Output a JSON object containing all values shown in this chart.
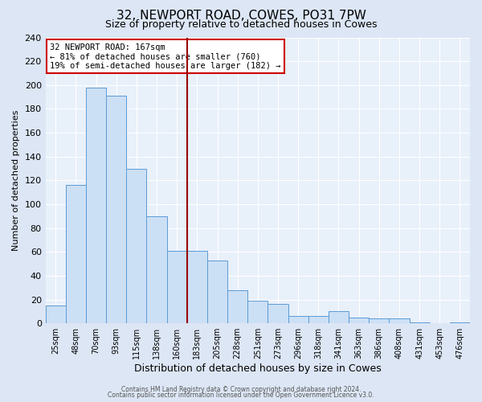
{
  "title": "32, NEWPORT ROAD, COWES, PO31 7PW",
  "subtitle": "Size of property relative to detached houses in Cowes",
  "xlabel": "Distribution of detached houses by size in Cowes",
  "ylabel": "Number of detached properties",
  "footer_line1": "Contains HM Land Registry data © Crown copyright and database right 2024.",
  "footer_line2": "Contains public sector information licensed under the Open Government Licence v3.0.",
  "bar_heights": [
    15,
    116,
    198,
    191,
    130,
    90,
    61,
    61,
    53,
    28,
    19,
    16,
    6,
    6,
    10,
    5,
    4,
    4,
    1,
    0,
    1
  ],
  "tick_labels": [
    "25sqm",
    "48sqm",
    "70sqm",
    "93sqm",
    "115sqm",
    "138sqm",
    "160sqm",
    "183sqm",
    "205sqm",
    "228sqm",
    "251sqm",
    "273sqm",
    "296sqm",
    "318sqm",
    "341sqm",
    "363sqm",
    "386sqm",
    "408sqm",
    "431sqm",
    "453sqm",
    "476sqm"
  ],
  "ylim": [
    0,
    240
  ],
  "yticks": [
    0,
    20,
    40,
    60,
    80,
    100,
    120,
    140,
    160,
    180,
    200,
    220,
    240
  ],
  "bar_color": "#cce0f5",
  "bar_edge_color": "#5b9bd5",
  "vline_index": 6,
  "vline_color": "#990000",
  "annotation_title": "32 NEWPORT ROAD: 167sqm",
  "annotation_line1": "← 81% of detached houses are smaller (760)",
  "annotation_line2": "19% of semi-detached houses are larger (182) →",
  "annotation_box_edgecolor": "#cc0000",
  "bg_color": "#dce6f5",
  "plot_bg_color": "#e8f0fa",
  "grid_color": "#ffffff",
  "title_fontsize": 11,
  "subtitle_fontsize": 9,
  "ylabel_fontsize": 8,
  "xlabel_fontsize": 9,
  "tick_fontsize": 7,
  "ytick_fontsize": 8,
  "footer_fontsize": 5.5
}
